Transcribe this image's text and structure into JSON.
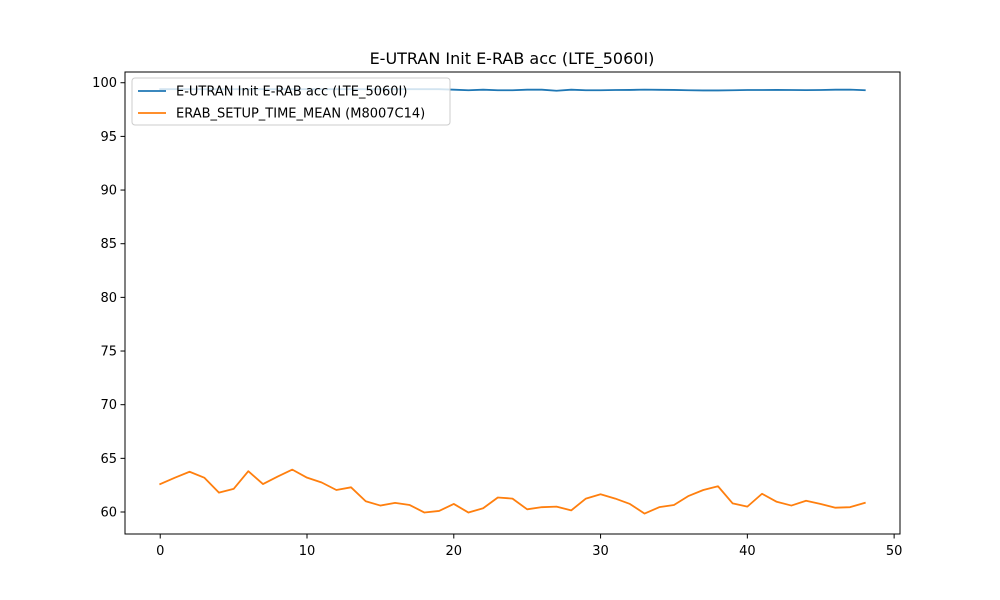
{
  "chart_data": {
    "type": "line",
    "title": "E-UTRAN Init E-RAB acc (LTE_5060I)",
    "xlabel": "",
    "ylabel": "",
    "xlim": [
      -2.4,
      50.4
    ],
    "ylim": [
      57.95,
      101.0
    ],
    "xticks": [
      0,
      10,
      20,
      30,
      40,
      50
    ],
    "yticks": [
      60,
      65,
      70,
      75,
      80,
      85,
      90,
      95,
      100
    ],
    "grid": false,
    "legend_position": "top-left",
    "x": [
      0,
      1,
      2,
      3,
      4,
      5,
      6,
      7,
      8,
      9,
      10,
      11,
      12,
      13,
      14,
      15,
      16,
      17,
      18,
      19,
      20,
      21,
      22,
      23,
      24,
      25,
      26,
      27,
      28,
      29,
      30,
      31,
      32,
      33,
      34,
      35,
      36,
      37,
      38,
      39,
      40,
      41,
      42,
      43,
      44,
      45,
      46,
      47,
      48
    ],
    "series": [
      {
        "name": "E-UTRAN Init E-RAB acc (LTE_5060I)",
        "color": "#1f77b4",
        "values": [
          99.4,
          99.4,
          99.4,
          99.4,
          99.4,
          99.4,
          99.4,
          99.4,
          99.4,
          99.4,
          99.4,
          99.4,
          99.4,
          99.4,
          99.4,
          99.4,
          99.4,
          99.4,
          99.4,
          99.4,
          99.35,
          99.3,
          99.35,
          99.3,
          99.3,
          99.35,
          99.35,
          99.25,
          99.35,
          99.3,
          99.3,
          99.32,
          99.33,
          99.36,
          99.34,
          99.33,
          99.3,
          99.28,
          99.28,
          99.3,
          99.32,
          99.32,
          99.33,
          99.32,
          99.31,
          99.32,
          99.35,
          99.36,
          99.3
        ]
      },
      {
        "name": "ERAB_SETUP_TIME_MEAN (M8007C14)",
        "color": "#ff7f0e",
        "values": [
          62.6,
          63.2,
          63.75,
          63.2,
          61.8,
          62.15,
          63.8,
          62.6,
          63.3,
          63.95,
          63.2,
          62.75,
          62.05,
          62.3,
          61.0,
          60.6,
          60.85,
          60.65,
          59.95,
          60.1,
          60.75,
          59.95,
          60.35,
          61.35,
          61.25,
          60.25,
          60.45,
          60.5,
          60.15,
          61.25,
          61.65,
          61.25,
          60.75,
          59.85,
          60.45,
          60.65,
          61.5,
          62.05,
          62.4,
          60.8,
          60.5,
          61.7,
          60.95,
          60.6,
          61.05,
          60.75,
          60.4,
          60.45,
          60.85
        ]
      }
    ]
  }
}
